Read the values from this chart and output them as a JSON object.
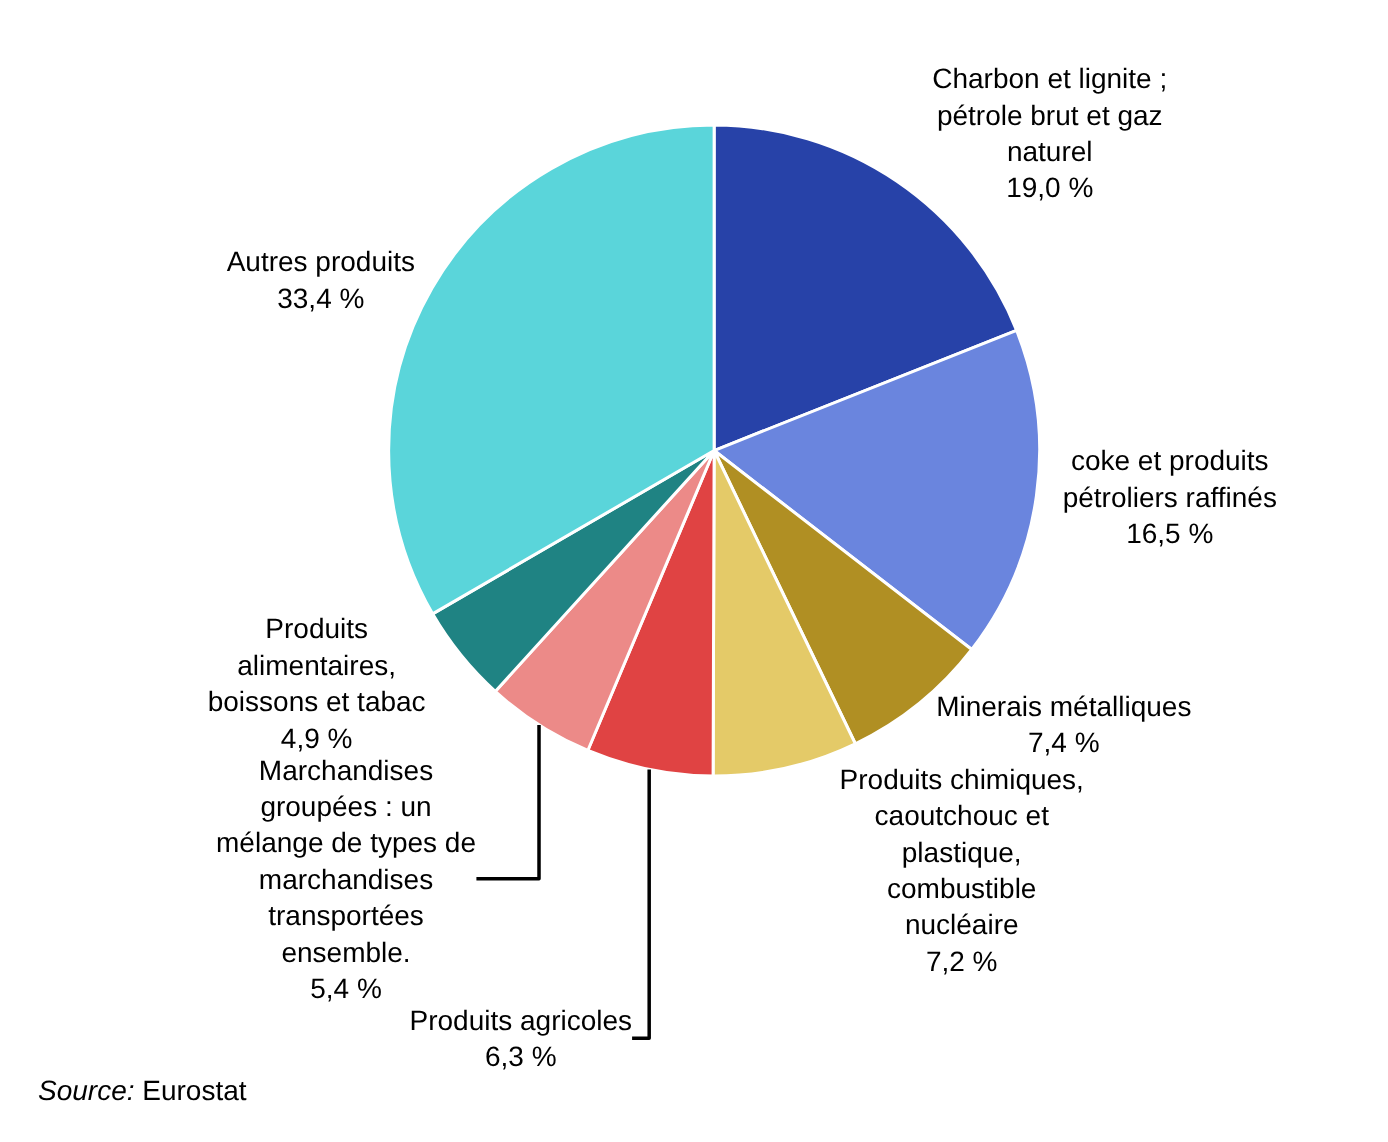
{
  "chart_data": {
    "type": "pie",
    "categories": [
      "Charbon et lignite ; pétrole brut et gaz naturel",
      "coke et produits pétroliers raffinés",
      "Minerais métalliques",
      "Produits chimiques, caoutchouc et plastique, combustible nucléaire",
      "Produits agricoles",
      "Marchandises groupées : un mélange de types de marchandises transportées ensemble.",
      "Produits alimentaires, boissons et tabac",
      "Autres produits"
    ],
    "values": [
      19.0,
      16.5,
      7.4,
      7.2,
      6.3,
      5.4,
      4.9,
      33.4
    ],
    "value_labels": [
      "19,0 %",
      "16,5 %",
      "7,4 %",
      "7,2 %",
      "6,3 %",
      "5,4 %",
      "4,9 %",
      "33,4 %"
    ],
    "colors": [
      "#2742a8",
      "#6a85de",
      "#b08f23",
      "#e4ca68",
      "#e04343",
      "#ec8a88",
      "#1f8383",
      "#5ad5da"
    ],
    "legend": false,
    "annotations": [
      "Source: Eurostat"
    ]
  }
}
